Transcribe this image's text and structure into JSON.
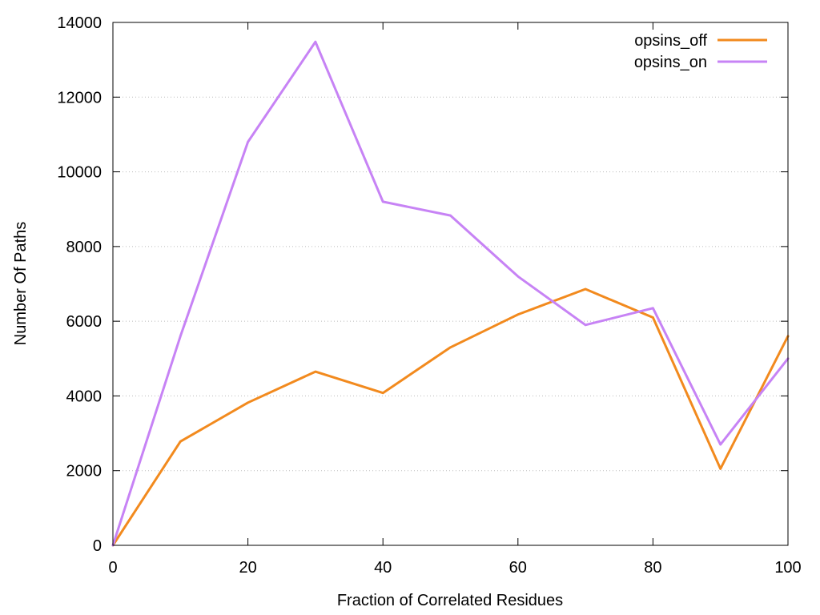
{
  "chart_data": {
    "type": "line",
    "title": "",
    "xlabel": "Fraction of Correlated Residues",
    "ylabel": "Number Of Paths",
    "xlim": [
      0,
      100
    ],
    "ylim": [
      0,
      14000
    ],
    "x_ticks": [
      0,
      20,
      40,
      60,
      80,
      100
    ],
    "y_ticks": [
      0,
      2000,
      4000,
      6000,
      8000,
      10000,
      12000,
      14000
    ],
    "x_tick_labels": [
      "0",
      "20",
      "40",
      "60",
      "80",
      "100"
    ],
    "y_tick_labels": [
      "0",
      "2000",
      "4000",
      "6000",
      "8000",
      "10000",
      "12000",
      "14000"
    ],
    "grid": "horizontal dotted",
    "legend_position": "top-right",
    "x": [
      0,
      10,
      20,
      30,
      40,
      50,
      60,
      70,
      80,
      90,
      100
    ],
    "series": [
      {
        "name": "opsins_off",
        "color": "#f28a1e",
        "values": [
          0,
          2780,
          3820,
          4650,
          4080,
          5300,
          6180,
          6860,
          6100,
          2050,
          5600
        ]
      },
      {
        "name": "opsins_on",
        "color": "#c783f5",
        "values": [
          0,
          5600,
          10800,
          13480,
          9200,
          8830,
          7200,
          5900,
          6350,
          2700,
          5000
        ]
      }
    ]
  }
}
